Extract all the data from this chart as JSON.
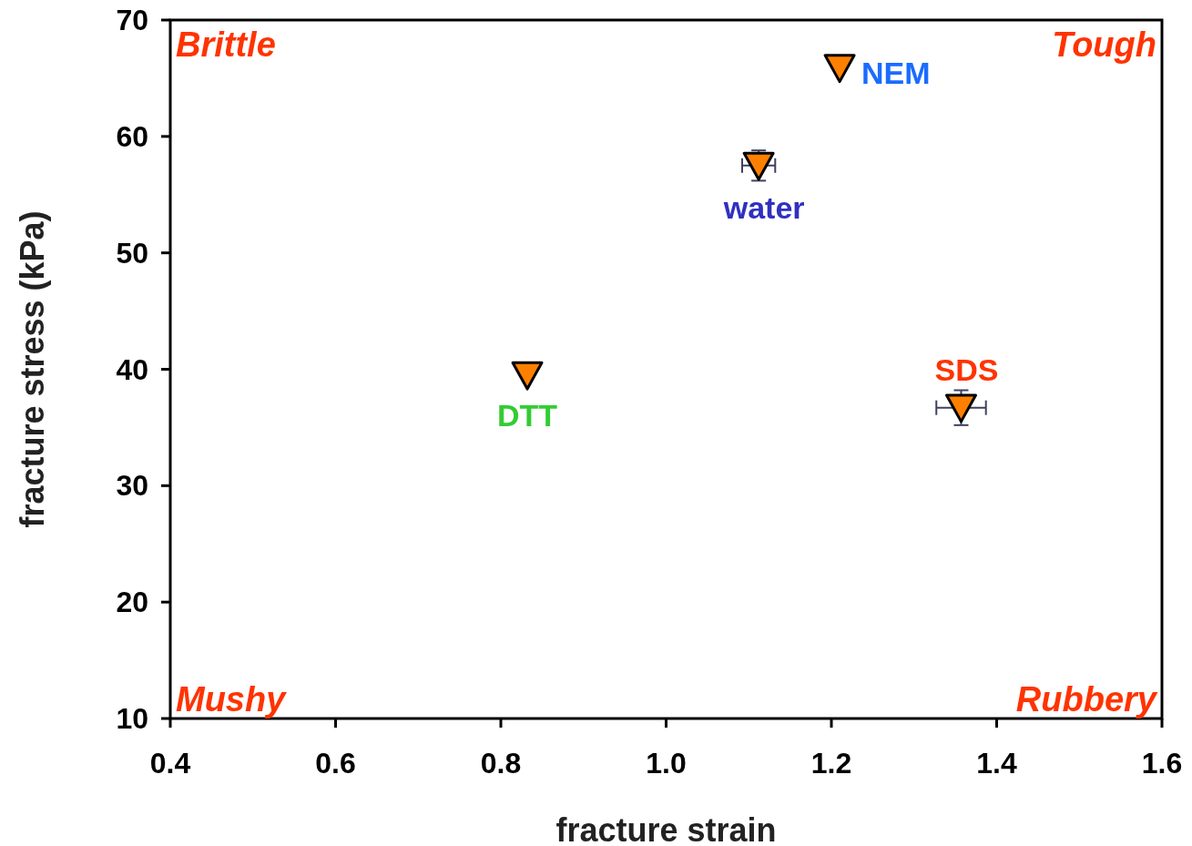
{
  "chart_data": {
    "type": "scatter",
    "xlabel": "fracture strain",
    "ylabel": "fracture stress (kPa)",
    "xlim": [
      0.4,
      1.6
    ],
    "xticks": [
      {
        "value": 0.4,
        "label": "0.4"
      },
      {
        "value": 0.6,
        "label": "0.6"
      },
      {
        "value": 0.8,
        "label": "0.8"
      },
      {
        "value": 1.0,
        "label": "1.0"
      },
      {
        "value": 1.2,
        "label": "1.2"
      },
      {
        "value": 1.4,
        "label": "1.4"
      },
      {
        "value": 1.6,
        "label": "1.6"
      }
    ],
    "ylim": [
      10,
      70
    ],
    "yticks": [
      10,
      20,
      30,
      40,
      50,
      60,
      70
    ],
    "marker": "triangle",
    "series": [
      {
        "name": "NEM",
        "color": "#ff8000",
        "x": [
          1.21
        ],
        "values": [
          65.9
        ]
      },
      {
        "name": "water",
        "color": "#ff8000",
        "x": [
          1.112
        ],
        "values": [
          57.5
        ],
        "errors": [
          1.3
        ],
        "xerrors": [
          0.02
        ]
      },
      {
        "name": "DTT",
        "color": "#ff8000",
        "x": [
          0.832
        ],
        "values": [
          39.5
        ]
      },
      {
        "name": "SDS",
        "color": "#ff8000",
        "x": [
          1.357
        ],
        "values": [
          36.7
        ],
        "errors": [
          1.5
        ],
        "xerrors": [
          0.03
        ]
      }
    ],
    "annotations": [
      "Brittle",
      "Tough",
      "Mushy",
      "Rubbery"
    ]
  }
}
